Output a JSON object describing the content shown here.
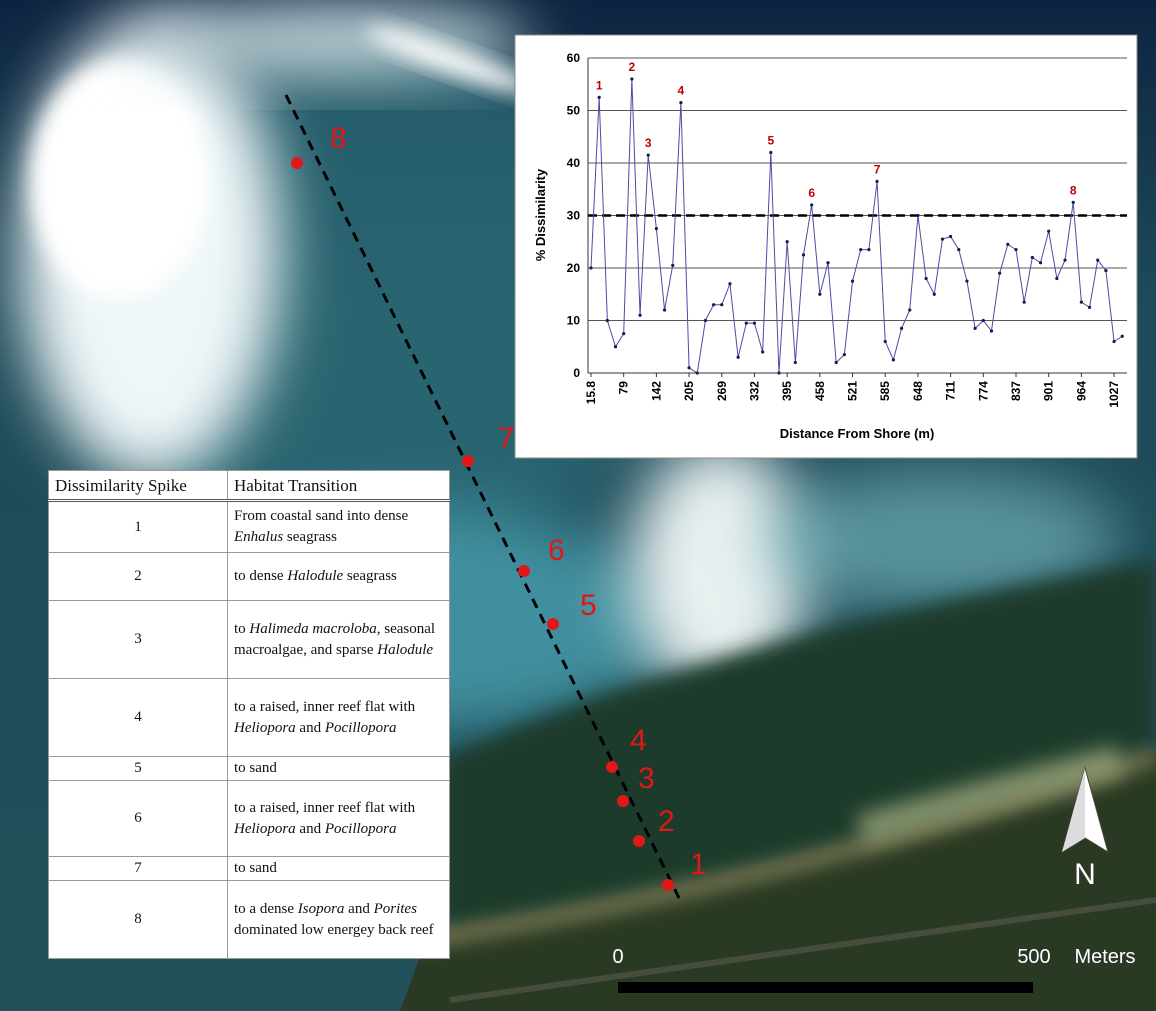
{
  "map": {
    "markers": [
      "1",
      "2",
      "3",
      "4",
      "5",
      "6",
      "7",
      "8"
    ],
    "scale": {
      "start": "0",
      "end": "500",
      "unit": "Meters"
    },
    "north": "N"
  },
  "chart_data": {
    "type": "line",
    "x_label": "Distance From Shore (m)",
    "y_label": "% Dissimilarity",
    "x": [
      15.8,
      31.6,
      47.4,
      63.2,
      79,
      94.8,
      110.6,
      126.4,
      142.2,
      158,
      173.8,
      189.6,
      205.4,
      221.2,
      237,
      252.8,
      268.6,
      284.4,
      300.2,
      316,
      331.8,
      347.6,
      363.4,
      379.2,
      395,
      410.8,
      426.6,
      442.4,
      458.2,
      474,
      489.8,
      505.6,
      521.4,
      537.2,
      553,
      568.8,
      584.6,
      600.4,
      616.2,
      632,
      647.8,
      663.6,
      679.4,
      695.2,
      711,
      726.8,
      742.6,
      758.4,
      774.2,
      790,
      805.8,
      821.6,
      837.4,
      853.2,
      869,
      884.8,
      900.6,
      916.4,
      932.2,
      948,
      963.8,
      979.6,
      995.4,
      1011.2,
      1027,
      1042.8
    ],
    "values": [
      20,
      52.5,
      10,
      5,
      7.5,
      56,
      11,
      41.5,
      27.5,
      12,
      20.5,
      51.5,
      1,
      0,
      10,
      13,
      13,
      17,
      3,
      9.5,
      9.5,
      4,
      42,
      0,
      25,
      2,
      22.5,
      32,
      15,
      21,
      2,
      3.5,
      17.5,
      23.5,
      23.5,
      36.5,
      6,
      2.5,
      8.5,
      12,
      30,
      18,
      15,
      25.5,
      26,
      23.5,
      17.5,
      8.5,
      10,
      8,
      19,
      24.5,
      23.5,
      13.5,
      22,
      21,
      27,
      18,
      21.5,
      32.5,
      13.5,
      12.5,
      21.5,
      19.5,
      6,
      7
    ],
    "color": "#4b4ba8",
    "marker_color": "#1a1a50",
    "xlim": [
      10,
      1052
    ],
    "xticks": [
      15.8,
      79,
      {
        "value": 142.2,
        "label": "142"
      },
      {
        "value": 205.4,
        "label": "205"
      },
      {
        "value": 268.6,
        "label": "269"
      },
      {
        "value": 331.8,
        "label": "332"
      },
      395,
      {
        "value": 458.2,
        "label": "458"
      },
      {
        "value": 521.4,
        "label": "521"
      },
      {
        "value": 584.6,
        "label": "585"
      },
      {
        "value": 647.8,
        "label": "648"
      },
      711,
      {
        "value": 774.2,
        "label": "774"
      },
      {
        "value": 837.4,
        "label": "837"
      },
      {
        "value": 900.6,
        "label": "901"
      },
      {
        "value": 963.8,
        "label": "964"
      },
      1027
    ],
    "ylim": [
      0,
      60
    ],
    "yticks": [
      0,
      10,
      20,
      30,
      40,
      50,
      60
    ],
    "grid": true,
    "reference_line": 30,
    "annotations": [
      {
        "text": "1",
        "x": 31.6
      },
      {
        "text": "2",
        "x": 94.8
      },
      {
        "text": "3",
        "x": 126.4
      },
      {
        "text": "4",
        "x": 189.6
      },
      {
        "text": "5",
        "x": 363.4
      },
      {
        "text": "6",
        "x": 442.4
      },
      {
        "text": "7",
        "x": 568.8
      },
      {
        "text": "8",
        "x": 948
      }
    ]
  },
  "table": {
    "header": [
      "Dissimilarity Spike",
      "Habitat Transition"
    ],
    "rows": [
      {
        "spike": "1",
        "habitat": [
          "From coastal sand into dense ",
          "Enhalus",
          " seagrass"
        ]
      },
      {
        "spike": "2",
        "habitat": [
          "to dense ",
          "Halodule",
          " seagrass"
        ]
      },
      {
        "spike": "3",
        "habitat": [
          "to ",
          "Halimeda macroloba",
          ", seasonal macroalgae, and sparse ",
          "Halodule"
        ]
      },
      {
        "spike": "4",
        "habitat": [
          "to a raised, inner reef flat with ",
          "Heliopora",
          " and ",
          "Pocillopora"
        ]
      },
      {
        "spike": "5",
        "habitat": [
          "to sand"
        ]
      },
      {
        "spike": "6",
        "habitat": [
          "to a raised, inner reef flat with ",
          "Heliopora",
          " and ",
          "Pocillopora"
        ]
      },
      {
        "spike": "7",
        "habitat": [
          "to sand"
        ]
      },
      {
        "spike": "8",
        "habitat": [
          "to a dense ",
          "Isopora",
          " and ",
          "Porites",
          " dominated low energey back reef"
        ]
      }
    ]
  }
}
